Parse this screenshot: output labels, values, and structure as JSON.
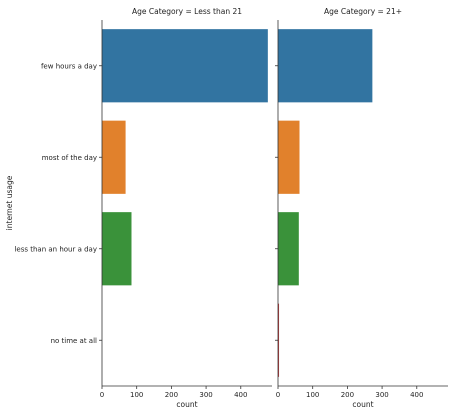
{
  "chart_data": {
    "type": "bar",
    "orientation": "horizontal",
    "ylabel": "internet usage",
    "xlabel": "count",
    "categories": [
      "few hours a day",
      "most of the day",
      "less than an hour a day",
      "no time at all"
    ],
    "colors": [
      "#3274a1",
      "#e1812c",
      "#3a923a",
      "#c03d3e"
    ],
    "xlim": [
      0,
      490
    ],
    "xticks": [
      "0",
      "100",
      "200",
      "300",
      "400"
    ],
    "grid": false,
    "panels": [
      {
        "title": "Age Category = Less than 21",
        "values": [
          478,
          68,
          85,
          0
        ]
      },
      {
        "title": "Age Category = 21+",
        "values": [
          272,
          62,
          60,
          3
        ]
      }
    ]
  }
}
